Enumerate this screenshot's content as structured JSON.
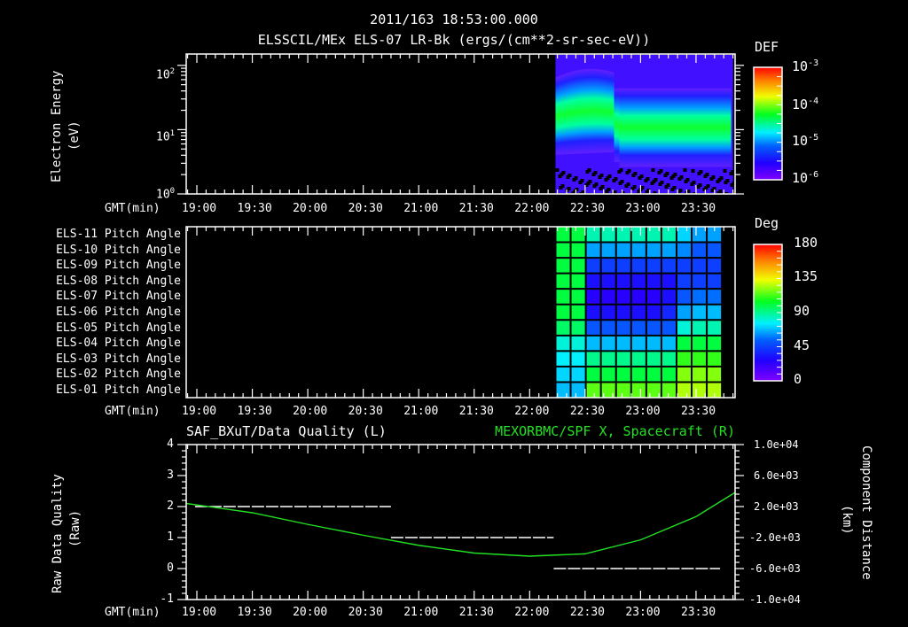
{
  "header": {
    "timestamp": "2011/163 18:53:00.000",
    "subtitle": "ELSSCIL/MEx ELS-07 LR-Bk  (ergs/(cm**2-sr-sec-eV))"
  },
  "time_axis": {
    "label": "GMT(min)",
    "ticks": [
      "19:00",
      "19:30",
      "20:00",
      "20:30",
      "21:00",
      "21:30",
      "22:00",
      "22:30",
      "23:00",
      "23:30"
    ]
  },
  "colors": {
    "background": "#000000",
    "axes": "#ffffff",
    "right_series": "#22e022"
  },
  "chart_data": [
    {
      "type": "heatmap",
      "title": "ELSSCIL/MEx ELS-07 LR-Bk (ergs/(cm**2-sr-sec-eV))",
      "xlabel": "GMT(min)",
      "ylabel": "Electron Energy (eV)",
      "yscale": "log",
      "ylim": [
        1,
        150
      ],
      "y_ticks": [
        "10^0",
        "10^1",
        "10^2"
      ],
      "x_ticks": [
        "19:00",
        "19:30",
        "20:00",
        "20:30",
        "21:00",
        "21:30",
        "22:00",
        "22:30",
        "23:00",
        "23:30"
      ],
      "data_start": "22:14",
      "data_end": "23:50",
      "colorbar": {
        "label": "DEF",
        "scale": "log",
        "range": [
          1e-06,
          0.001
        ],
        "ticks": [
          "10^-3",
          "10^-4",
          "10^-5",
          "10^-6"
        ]
      },
      "description": "Data only after ~22:14. Green band (~1e-4) spans ~8-40 eV before 22:45, shifts lower to ~4-20 eV after ~22:45; narrow spike ~23:17; blue/violet noise at <3 eV and >60 eV."
    },
    {
      "type": "heatmap",
      "title": "Pitch Angle",
      "xlabel": "GMT(min)",
      "rows": [
        "ELS-11 Pitch Angle",
        "ELS-10 Pitch Angle",
        "ELS-09 Pitch Angle",
        "ELS-08 Pitch Angle",
        "ELS-07 Pitch Angle",
        "ELS-06 Pitch Angle",
        "ELS-05 Pitch Angle",
        "ELS-04 Pitch Angle",
        "ELS-03 Pitch Angle",
        "ELS-02 Pitch Angle",
        "ELS-01 Pitch Angle"
      ],
      "x_ticks": [
        "19:00",
        "19:30",
        "20:00",
        "20:30",
        "21:00",
        "21:30",
        "22:00",
        "22:30",
        "23:00",
        "23:30"
      ],
      "colorbar": {
        "label": "Deg",
        "range": [
          0,
          180
        ],
        "ticks": [
          "180",
          "135",
          "90",
          "45",
          "0"
        ]
      },
      "data_start": "22:14",
      "data_end": "23:44",
      "values_deg": [
        [
          100,
          100,
          85,
          85,
          85,
          85,
          85,
          85,
          70,
          60,
          60
        ],
        [
          100,
          100,
          60,
          60,
          60,
          60,
          60,
          60,
          55,
          45,
          45
        ],
        [
          100,
          100,
          40,
          40,
          40,
          40,
          40,
          40,
          40,
          40,
          40
        ],
        [
          100,
          100,
          30,
          30,
          30,
          30,
          30,
          30,
          40,
          40,
          40
        ],
        [
          100,
          100,
          25,
          25,
          25,
          25,
          25,
          30,
          45,
          50,
          50
        ],
        [
          100,
          100,
          30,
          30,
          30,
          30,
          30,
          35,
          60,
          65,
          65
        ],
        [
          95,
          95,
          45,
          45,
          45,
          45,
          45,
          45,
          80,
          85,
          85
        ],
        [
          80,
          80,
          65,
          65,
          65,
          65,
          65,
          65,
          100,
          100,
          100
        ],
        [
          75,
          75,
          90,
          90,
          90,
          90,
          90,
          90,
          110,
          110,
          110
        ],
        [
          70,
          70,
          100,
          100,
          100,
          100,
          100,
          100,
          120,
          120,
          120
        ],
        [
          65,
          65,
          115,
          115,
          115,
          115,
          115,
          115,
          125,
          125,
          125
        ]
      ]
    },
    {
      "type": "line",
      "title_left": "SAF_BXuT/Data Quality (L)",
      "title_right": "MEXORBMC/SPF X, Spacecraft (R)",
      "xlabel": "GMT(min)",
      "ylabel_left": "Raw Data Quality (Raw)",
      "ylabel_right": "Component Distance (km)",
      "ylim_left": [
        -1,
        4
      ],
      "ylim_right": [
        -10000,
        10000
      ],
      "left_ticks": [
        "4",
        "3",
        "2",
        "1",
        "0",
        "-1"
      ],
      "right_ticks": [
        "1.0e+04",
        "6.0e+03",
        "2.0e+03",
        "-2.0e+03",
        "-6.0e+03",
        "-1.0e+04"
      ],
      "series": [
        {
          "name": "SAF_BXuT/Data Quality",
          "axis": "left",
          "color": "#ffffff",
          "x": [
            "18:59",
            "20:45",
            "20:45",
            "22:13",
            "22:13",
            "23:43"
          ],
          "values": [
            2,
            2,
            1,
            1,
            0,
            0
          ]
        },
        {
          "name": "MEXORBMC/SPF X, Spacecraft",
          "axis": "right",
          "color": "#22e022",
          "x": [
            "18:54",
            "19:30",
            "20:00",
            "20:30",
            "21:00",
            "21:30",
            "22:00",
            "22:30",
            "23:00",
            "23:30",
            "23:51"
          ],
          "values": [
            2400,
            1200,
            -300,
            -1700,
            -3000,
            -4000,
            -4400,
            -4100,
            -2300,
            700,
            3800
          ]
        }
      ]
    }
  ],
  "panel1": {
    "ylabel_line1": "Electron Energy",
    "ylabel_line2": "(eV)",
    "y_ticks": [
      {
        "base": "10",
        "exp": "2"
      },
      {
        "base": "10",
        "exp": "1"
      },
      {
        "base": "10",
        "exp": "0"
      }
    ],
    "colorbar_label": "DEF",
    "colorbar_ticks": [
      {
        "base": "10",
        "exp": "-3"
      },
      {
        "base": "10",
        "exp": "-4"
      },
      {
        "base": "10",
        "exp": "-5"
      },
      {
        "base": "10",
        "exp": "-6"
      }
    ]
  },
  "panel2": {
    "rows": [
      "ELS-11 Pitch Angle",
      "ELS-10 Pitch Angle",
      "ELS-09 Pitch Angle",
      "ELS-08 Pitch Angle",
      "ELS-07 Pitch Angle",
      "ELS-06 Pitch Angle",
      "ELS-05 Pitch Angle",
      "ELS-04 Pitch Angle",
      "ELS-03 Pitch Angle",
      "ELS-02 Pitch Angle",
      "ELS-01 Pitch Angle"
    ],
    "colorbar_label": "Deg",
    "colorbar_ticks": [
      "180",
      "135",
      "90",
      "45",
      "0"
    ]
  },
  "panel3": {
    "title_left": "SAF_BXuT/Data Quality (L)",
    "title_right": "MEXORBMC/SPF X, Spacecraft (R)",
    "ylabel_left_line1": "Raw Data Quality",
    "ylabel_left_line2": "(Raw)",
    "ylabel_right_line1": "Component Distance",
    "ylabel_right_line2": "(km)",
    "left_ticks": [
      "4",
      "3",
      "2",
      "1",
      "0",
      "-1"
    ],
    "right_ticks": [
      "1.0e+04",
      "6.0e+03",
      "2.0e+03",
      "-2.0e+03",
      "-6.0e+03",
      "-1.0e+04"
    ]
  }
}
